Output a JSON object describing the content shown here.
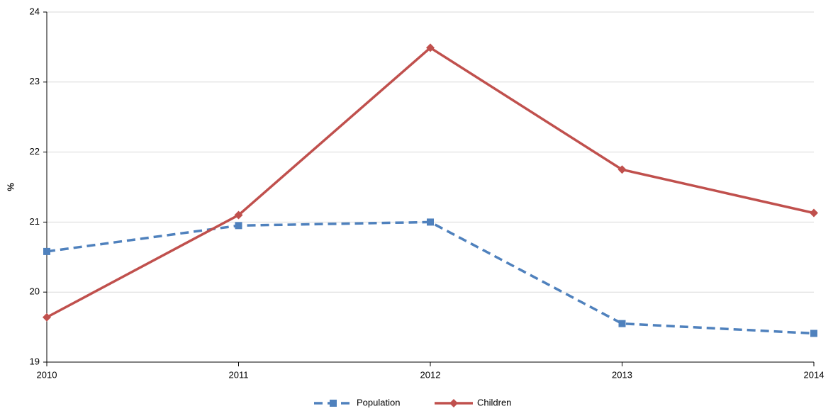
{
  "chart_data": {
    "type": "line",
    "y_label": "%",
    "categories": [
      "2010",
      "2011",
      "2012",
      "2013",
      "2014"
    ],
    "series": [
      {
        "name": "Population",
        "color": "#4f81bd",
        "line_style": "dashed",
        "marker": "square",
        "values": [
          20.58,
          20.95,
          21.0,
          19.55,
          19.41
        ]
      },
      {
        "name": "Children",
        "color": "#c0504d",
        "line_style": "solid",
        "marker": "diamond",
        "values": [
          19.64,
          21.1,
          23.49,
          21.75,
          21.13
        ]
      }
    ],
    "ylim": [
      19,
      24
    ],
    "yticks": [
      19,
      20,
      21,
      22,
      23,
      24
    ],
    "grid": true,
    "legend": "bottom"
  }
}
